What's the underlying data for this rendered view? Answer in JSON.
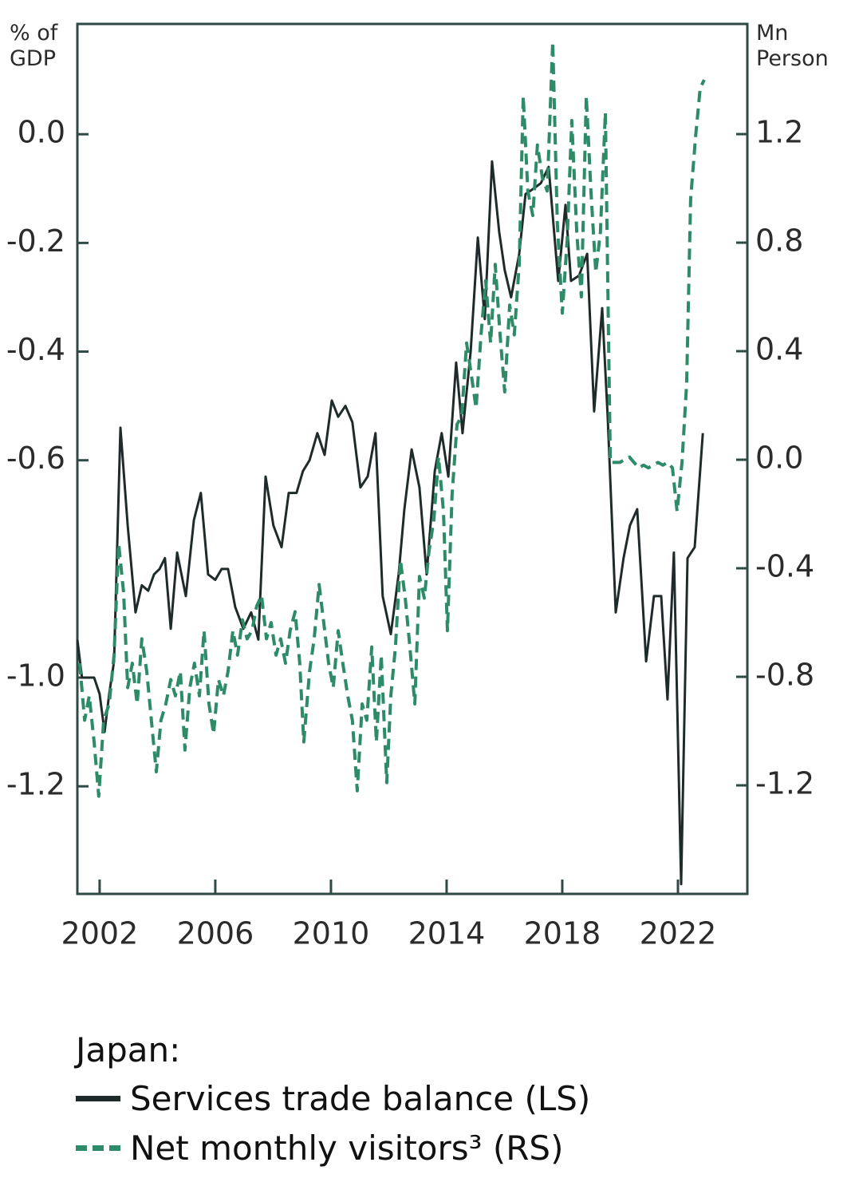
{
  "chart_data": {
    "type": "line",
    "y_label": "% of GDP",
    "y2_label": "Mn Person",
    "legend_title": "Japan:",
    "xlim": [
      2001.23,
      2024.4
    ],
    "xticks": [
      2002,
      2006,
      2010,
      2014,
      2018,
      2022
    ],
    "ylim": [
      -1.398,
      0.203
    ],
    "yticks": [
      {
        "value": 0,
        "label": "0.0"
      },
      -0.2,
      -0.4,
      -0.6,
      {
        "value": -1,
        "label": "-1.0"
      },
      -1.2
    ],
    "y2lim": [
      -1.6,
      1.606
    ],
    "y2ticks": [
      1.2,
      0.8,
      0.4,
      {
        "value": 0,
        "label": "0.0"
      },
      -0.4,
      -0.8,
      -1.2
    ],
    "series": [
      {
        "name": "Services trade balance (LS)",
        "color": "#1f2b2a",
        "style": "solid",
        "x": [
          2001.23,
          2001.39,
          2001.59,
          2001.81,
          2002.0,
          2002.17,
          2002.33,
          2002.5,
          2002.72,
          2002.97,
          2003.24,
          2003.46,
          2003.68,
          2003.88,
          2004.07,
          2004.26,
          2004.46,
          2004.68,
          2004.98,
          2005.26,
          2005.5,
          2005.75,
          2006.0,
          2006.22,
          2006.44,
          2006.69,
          2006.97,
          2007.24,
          2007.49,
          2007.74,
          2008.01,
          2008.29,
          2008.54,
          2008.81,
          2009.03,
          2009.26,
          2009.53,
          2009.78,
          2010.03,
          2010.25,
          2010.5,
          2010.74,
          2011.02,
          2011.27,
          2011.54,
          2011.79,
          2012.07,
          2012.34,
          2012.54,
          2012.79,
          2013.06,
          2013.31,
          2013.59,
          2013.83,
          2014.06,
          2014.33,
          2014.55,
          2014.83,
          2015.08,
          2015.32,
          2015.57,
          2015.82,
          2016.01,
          2016.23,
          2016.51,
          2016.73,
          2017.01,
          2017.26,
          2017.53,
          2017.86,
          2018.11,
          2018.3,
          2018.58,
          2018.86,
          2019.1,
          2019.38,
          2019.57,
          2019.85,
          2020.12,
          2020.34,
          2020.59,
          2020.9,
          2021.17,
          2021.42,
          2021.64,
          2021.86,
          2022.11,
          2022.33,
          2022.58,
          2022.86
        ],
        "values": [
          -0.93,
          -1.0,
          -1.0,
          -1.0,
          -1.03,
          -1.1,
          -1.03,
          -0.97,
          -0.54,
          -0.72,
          -0.88,
          -0.83,
          -0.84,
          -0.81,
          -0.8,
          -0.78,
          -0.91,
          -0.77,
          -0.85,
          -0.71,
          -0.66,
          -0.81,
          -0.82,
          -0.8,
          -0.8,
          -0.87,
          -0.91,
          -0.88,
          -0.93,
          -0.63,
          -0.72,
          -0.76,
          -0.66,
          -0.66,
          -0.62,
          -0.6,
          -0.55,
          -0.59,
          -0.49,
          -0.52,
          -0.5,
          -0.53,
          -0.65,
          -0.63,
          -0.55,
          -0.85,
          -0.92,
          -0.81,
          -0.69,
          -0.58,
          -0.65,
          -0.81,
          -0.62,
          -0.55,
          -0.63,
          -0.42,
          -0.55,
          -0.4,
          -0.19,
          -0.34,
          -0.05,
          -0.18,
          -0.25,
          -0.3,
          -0.22,
          -0.11,
          -0.1,
          -0.09,
          -0.06,
          -0.27,
          -0.13,
          -0.27,
          -0.26,
          -0.22,
          -0.51,
          -0.32,
          -0.52,
          -0.88,
          -0.78,
          -0.72,
          -0.69,
          -0.97,
          -0.85,
          -0.85,
          -1.04,
          -0.77,
          -1.38,
          -0.78,
          -0.76,
          -0.55
        ]
      },
      {
        "name": "Net monthly visitors³ (RS)",
        "color": "#2e8b68",
        "style": "dashed",
        "axis": "y2",
        "x": [
          2001.31,
          2001.48,
          2001.64,
          2001.81,
          2001.97,
          2002.14,
          2002.33,
          2002.5,
          2002.66,
          2002.83,
          2002.97,
          2003.13,
          2003.3,
          2003.46,
          2003.63,
          2003.79,
          2003.96,
          2004.12,
          2004.29,
          2004.46,
          2004.62,
          2004.79,
          2004.95,
          2005.12,
          2005.28,
          2005.45,
          2005.61,
          2005.78,
          2005.94,
          2006.11,
          2006.28,
          2006.44,
          2006.61,
          2006.77,
          2006.94,
          2007.1,
          2007.27,
          2007.43,
          2007.6,
          2007.77,
          2007.93,
          2008.1,
          2008.26,
          2008.43,
          2008.59,
          2008.76,
          2008.92,
          2009.06,
          2009.26,
          2009.42,
          2009.59,
          2009.75,
          2009.92,
          2010.08,
          2010.25,
          2010.41,
          2010.58,
          2010.74,
          2010.91,
          2011.08,
          2011.24,
          2011.41,
          2011.57,
          2011.74,
          2011.93,
          2012.07,
          2012.23,
          2012.4,
          2012.57,
          2012.73,
          2012.9,
          2013.06,
          2013.23,
          2013.39,
          2013.56,
          2013.72,
          2013.89,
          2014.03,
          2014.19,
          2014.36,
          2014.52,
          2014.69,
          2014.86,
          2015.02,
          2015.19,
          2015.35,
          2015.52,
          2015.68,
          2015.85,
          2016.01,
          2016.18,
          2016.34,
          2016.51,
          2016.65,
          2016.81,
          2016.98,
          2017.14,
          2017.31,
          2017.48,
          2017.67,
          2017.83,
          2018.0,
          2018.17,
          2018.33,
          2018.5,
          2018.66,
          2018.83,
          2018.99,
          2019.16,
          2019.32,
          2019.49,
          2019.66,
          2019.82,
          2019.99,
          2020.15,
          2020.32,
          2020.48,
          2020.65,
          2020.81,
          2020.98,
          2021.14,
          2021.31,
          2021.48,
          2021.64,
          2021.81,
          2021.97,
          2022.14,
          2022.3,
          2022.44,
          2022.61,
          2022.77,
          2022.91
        ],
        "values": [
          -0.75,
          -0.96,
          -0.87,
          -1.04,
          -1.24,
          -0.96,
          -0.9,
          -0.72,
          -0.31,
          -0.49,
          -0.84,
          -0.75,
          -0.9,
          -0.66,
          -0.78,
          -0.96,
          -1.15,
          -0.96,
          -0.9,
          -0.81,
          -0.87,
          -0.78,
          -1.07,
          -0.84,
          -0.75,
          -0.87,
          -0.63,
          -0.9,
          -1.01,
          -0.81,
          -0.87,
          -0.78,
          -0.63,
          -0.72,
          -0.59,
          -0.66,
          -0.63,
          -0.54,
          -0.5,
          -0.66,
          -0.6,
          -0.72,
          -0.66,
          -0.75,
          -0.63,
          -0.56,
          -0.75,
          -1.04,
          -0.78,
          -0.66,
          -0.46,
          -0.6,
          -0.75,
          -0.84,
          -0.63,
          -0.75,
          -0.87,
          -0.96,
          -1.22,
          -0.9,
          -0.96,
          -0.69,
          -1.04,
          -0.72,
          -1.19,
          -0.87,
          -0.69,
          -0.37,
          -0.51,
          -0.69,
          -0.9,
          -0.43,
          -0.51,
          -0.34,
          -0.22,
          0.01,
          -0.19,
          -0.63,
          -0.13,
          0.13,
          0.16,
          0.43,
          0.31,
          0.19,
          0.46,
          0.66,
          0.43,
          0.72,
          0.46,
          0.25,
          0.57,
          0.46,
          0.72,
          1.34,
          0.99,
          0.9,
          1.16,
          1.04,
          0.99,
          1.54,
          0.87,
          0.54,
          0.81,
          1.25,
          0.84,
          0.6,
          1.34,
          0.99,
          0.69,
          0.84,
          1.28,
          -0.01,
          -0.01,
          -0.01,
          0.0,
          0.01,
          -0.01,
          -0.03,
          -0.02,
          -0.03,
          -0.02,
          -0.01,
          -0.02,
          -0.01,
          -0.03,
          -0.19,
          -0.01,
          0.28,
          0.96,
          1.19,
          1.37,
          1.4
        ]
      }
    ]
  }
}
